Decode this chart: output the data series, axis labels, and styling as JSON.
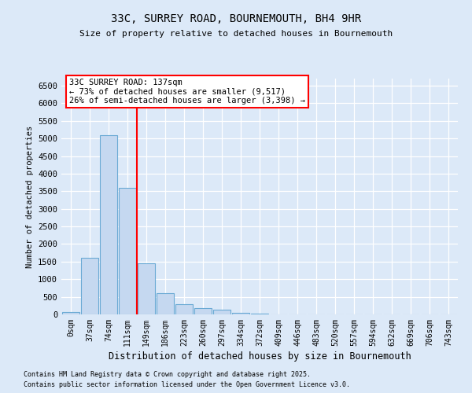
{
  "title1": "33C, SURREY ROAD, BOURNEMOUTH, BH4 9HR",
  "title2": "Size of property relative to detached houses in Bournemouth",
  "xlabel": "Distribution of detached houses by size in Bournemouth",
  "ylabel": "Number of detached properties",
  "bin_labels": [
    "0sqm",
    "37sqm",
    "74sqm",
    "111sqm",
    "149sqm",
    "186sqm",
    "223sqm",
    "260sqm",
    "297sqm",
    "334sqm",
    "372sqm",
    "409sqm",
    "446sqm",
    "483sqm",
    "520sqm",
    "557sqm",
    "594sqm",
    "632sqm",
    "669sqm",
    "706sqm",
    "743sqm"
  ],
  "bar_values": [
    75,
    1600,
    5100,
    3600,
    1450,
    600,
    300,
    175,
    125,
    55,
    25,
    10,
    5,
    2,
    1,
    0,
    0,
    0,
    0,
    0,
    0
  ],
  "bar_color": "#c5d8f0",
  "bar_edge_color": "#6aaad4",
  "vline_bin_index": 3,
  "vline_color": "red",
  "annotation_line1": "33C SURREY ROAD: 137sqm",
  "annotation_line2": "← 73% of detached houses are smaller (9,517)",
  "annotation_line3": "26% of semi-detached houses are larger (3,398) →",
  "annotation_box_facecolor": "white",
  "annotation_box_edgecolor": "red",
  "ylim_max": 6700,
  "yticks": [
    0,
    500,
    1000,
    1500,
    2000,
    2500,
    3000,
    3500,
    4000,
    4500,
    5000,
    5500,
    6000,
    6500
  ],
  "footer1": "Contains HM Land Registry data © Crown copyright and database right 2025.",
  "footer2": "Contains public sector information licensed under the Open Government Licence v3.0.",
  "bg_color": "#dce9f8",
  "grid_color": "white"
}
